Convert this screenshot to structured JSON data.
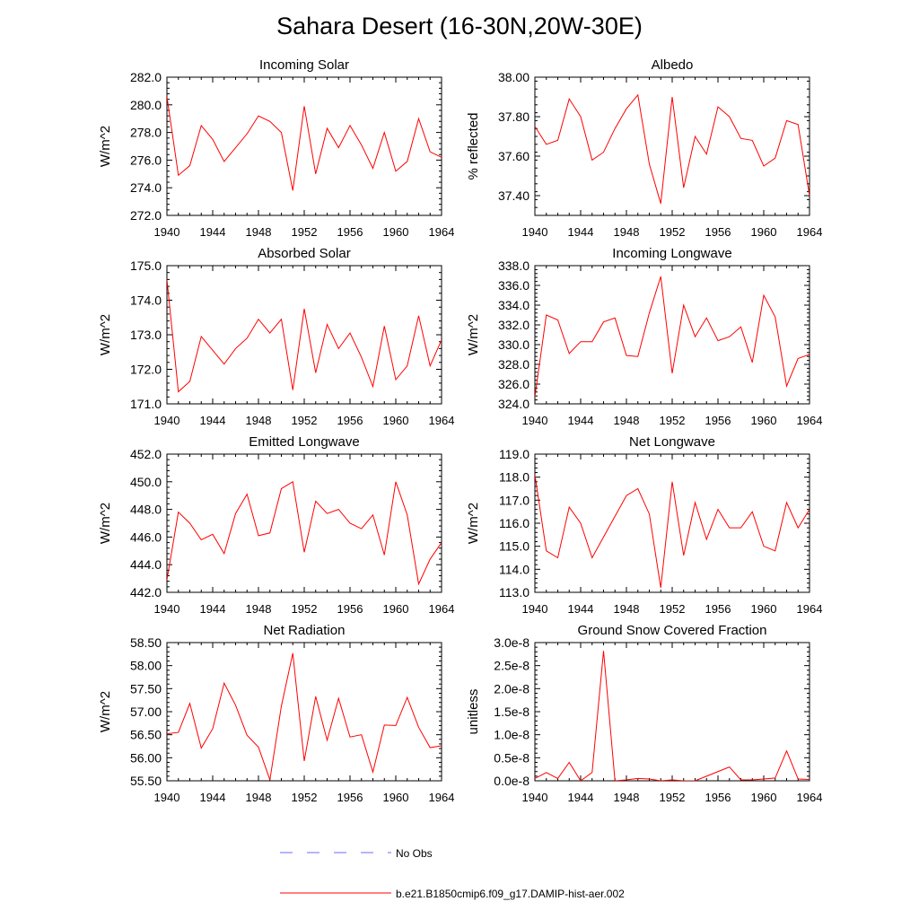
{
  "title": "Sahara Desert (16-30N,20W-30E)",
  "colors": {
    "model_line": "#ff0000",
    "obs_line": "#6b6bff",
    "axis": "#000000"
  },
  "legend": {
    "obs_label": "No Obs",
    "model_label": "b.e21.B1850cmip6.f09_g17.DAMIP-hist-aer.002"
  },
  "chart_data": [
    {
      "type": "line",
      "title": "Incoming Solar",
      "ylabel": "W/m^2",
      "xlim": [
        1940,
        1964
      ],
      "ylim": [
        272.0,
        282.0
      ],
      "yticks": [
        272.0,
        274.0,
        276.0,
        278.0,
        280.0,
        282.0
      ],
      "ytick_labels": [
        "272.0",
        "274.0",
        "276.0",
        "278.0",
        "280.0",
        "282.0"
      ],
      "xticks": [
        1940,
        1944,
        1948,
        1952,
        1956,
        1960,
        1964
      ],
      "x": [
        1940,
        1941,
        1942,
        1943,
        1944,
        1945,
        1946,
        1947,
        1948,
        1949,
        1950,
        1951,
        1952,
        1953,
        1954,
        1955,
        1956,
        1957,
        1958,
        1959,
        1960,
        1961,
        1962,
        1963,
        1964
      ],
      "series": [
        {
          "values": [
            280.6,
            274.9,
            275.6,
            278.5,
            277.5,
            275.9,
            276.9,
            277.9,
            279.2,
            278.8,
            278.0,
            273.8,
            279.9,
            275.0,
            278.3,
            276.9,
            278.5,
            277.1,
            275.4,
            278.0,
            275.2,
            275.9,
            279.0,
            276.6,
            276.2
          ]
        }
      ]
    },
    {
      "type": "line",
      "title": "Albedo",
      "ylabel": "% reflected",
      "xlim": [
        1940,
        1964
      ],
      "ylim": [
        37.3,
        38.0
      ],
      "yticks": [
        37.4,
        37.6,
        37.8,
        38.0
      ],
      "ytick_labels": [
        "37.40",
        "37.60",
        "37.80",
        "38.00"
      ],
      "xticks": [
        1940,
        1944,
        1948,
        1952,
        1956,
        1960,
        1964
      ],
      "x": [
        1940,
        1941,
        1942,
        1943,
        1944,
        1945,
        1946,
        1947,
        1948,
        1949,
        1950,
        1951,
        1952,
        1953,
        1954,
        1955,
        1956,
        1957,
        1958,
        1959,
        1960,
        1961,
        1962,
        1963,
        1964
      ],
      "series": [
        {
          "values": [
            37.75,
            37.66,
            37.68,
            37.89,
            37.8,
            37.58,
            37.62,
            37.74,
            37.84,
            37.91,
            37.56,
            37.36,
            37.9,
            37.44,
            37.7,
            37.61,
            37.85,
            37.8,
            37.69,
            37.68,
            37.55,
            37.59,
            37.78,
            37.76,
            37.4
          ]
        }
      ]
    },
    {
      "type": "line",
      "title": "Absorbed Solar",
      "ylabel": "W/m^2",
      "xlim": [
        1940,
        1964
      ],
      "ylim": [
        171.0,
        175.0
      ],
      "yticks": [
        171.0,
        172.0,
        173.0,
        174.0,
        175.0
      ],
      "ytick_labels": [
        "171.0",
        "172.0",
        "173.0",
        "174.0",
        "175.0"
      ],
      "xticks": [
        1940,
        1944,
        1948,
        1952,
        1956,
        1960,
        1964
      ],
      "x": [
        1940,
        1941,
        1942,
        1943,
        1944,
        1945,
        1946,
        1947,
        1948,
        1949,
        1950,
        1951,
        1952,
        1953,
        1954,
        1955,
        1956,
        1957,
        1958,
        1959,
        1960,
        1961,
        1962,
        1963,
        1964
      ],
      "series": [
        {
          "values": [
            174.6,
            171.35,
            171.65,
            172.95,
            172.55,
            172.15,
            172.6,
            172.9,
            173.45,
            173.05,
            173.45,
            171.4,
            173.75,
            171.9,
            173.3,
            172.6,
            173.05,
            172.35,
            171.5,
            173.25,
            171.7,
            172.1,
            173.55,
            172.1,
            172.85
          ]
        }
      ]
    },
    {
      "type": "line",
      "title": "Incoming Longwave",
      "ylabel": "W/m^2",
      "xlim": [
        1940,
        1964
      ],
      "ylim": [
        324.0,
        338.0
      ],
      "yticks": [
        324.0,
        326.0,
        328.0,
        330.0,
        332.0,
        334.0,
        336.0,
        338.0
      ],
      "ytick_labels": [
        "324.0",
        "326.0",
        "328.0",
        "330.0",
        "332.0",
        "334.0",
        "336.0",
        "338.0"
      ],
      "xticks": [
        1940,
        1944,
        1948,
        1952,
        1956,
        1960,
        1964
      ],
      "x": [
        1940,
        1941,
        1942,
        1943,
        1944,
        1945,
        1946,
        1947,
        1948,
        1949,
        1950,
        1951,
        1952,
        1953,
        1954,
        1955,
        1956,
        1957,
        1958,
        1959,
        1960,
        1961,
        1962,
        1963,
        1964
      ],
      "series": [
        {
          "values": [
            324.7,
            333.0,
            332.5,
            329.1,
            330.3,
            330.3,
            332.3,
            332.7,
            328.9,
            328.8,
            333.2,
            336.9,
            327.1,
            334.0,
            330.8,
            332.7,
            330.4,
            330.8,
            331.8,
            328.2,
            335.0,
            332.8,
            325.8,
            328.6,
            329.0
          ]
        }
      ]
    },
    {
      "type": "line",
      "title": "Emitted Longwave",
      "ylabel": "W/m^2",
      "xlim": [
        1940,
        1964
      ],
      "ylim": [
        442.0,
        452.0
      ],
      "yticks": [
        442.0,
        444.0,
        446.0,
        448.0,
        450.0,
        452.0
      ],
      "ytick_labels": [
        "442.0",
        "444.0",
        "446.0",
        "448.0",
        "450.0",
        "452.0"
      ],
      "xticks": [
        1940,
        1944,
        1948,
        1952,
        1956,
        1960,
        1964
      ],
      "x": [
        1940,
        1941,
        1942,
        1943,
        1944,
        1945,
        1946,
        1947,
        1948,
        1949,
        1950,
        1951,
        1952,
        1953,
        1954,
        1955,
        1956,
        1957,
        1958,
        1959,
        1960,
        1961,
        1962,
        1963,
        1964
      ],
      "series": [
        {
          "values": [
            442.9,
            447.8,
            447.0,
            445.8,
            446.2,
            444.8,
            447.7,
            449.1,
            446.1,
            446.3,
            449.5,
            450.0,
            444.9,
            448.6,
            447.7,
            448.0,
            447.0,
            446.6,
            447.6,
            444.7,
            450.0,
            447.6,
            442.6,
            444.4,
            445.6
          ]
        }
      ]
    },
    {
      "type": "line",
      "title": "Net Longwave",
      "ylabel": "W/m^2",
      "xlim": [
        1940,
        1964
      ],
      "ylim": [
        113.0,
        119.0
      ],
      "yticks": [
        113.0,
        114.0,
        115.0,
        116.0,
        117.0,
        118.0,
        119.0
      ],
      "ytick_labels": [
        "113.0",
        "114.0",
        "115.0",
        "116.0",
        "117.0",
        "118.0",
        "119.0"
      ],
      "xticks": [
        1940,
        1944,
        1948,
        1952,
        1956,
        1960,
        1964
      ],
      "x": [
        1940,
        1941,
        1942,
        1943,
        1944,
        1945,
        1946,
        1947,
        1948,
        1949,
        1950,
        1951,
        1952,
        1953,
        1954,
        1955,
        1956,
        1957,
        1958,
        1959,
        1960,
        1961,
        1962,
        1963,
        1964
      ],
      "series": [
        {
          "values": [
            118.1,
            114.8,
            114.5,
            116.7,
            116.0,
            114.5,
            115.4,
            116.3,
            117.2,
            117.5,
            116.4,
            113.2,
            117.8,
            114.6,
            116.9,
            115.3,
            116.6,
            115.8,
            115.8,
            116.5,
            115.0,
            114.8,
            116.9,
            115.8,
            116.6
          ]
        }
      ]
    },
    {
      "type": "line",
      "title": "Net Radiation",
      "ylabel": "W/m^2",
      "xlim": [
        1940,
        1964
      ],
      "ylim": [
        55.5,
        58.5
      ],
      "yticks": [
        55.5,
        56.0,
        56.5,
        57.0,
        57.5,
        58.0,
        58.5
      ],
      "ytick_labels": [
        "55.50",
        "56.00",
        "56.50",
        "57.00",
        "57.50",
        "58.00",
        "58.50"
      ],
      "xticks": [
        1940,
        1944,
        1948,
        1952,
        1956,
        1960,
        1964
      ],
      "x": [
        1940,
        1941,
        1942,
        1943,
        1944,
        1945,
        1946,
        1947,
        1948,
        1949,
        1950,
        1951,
        1952,
        1953,
        1954,
        1955,
        1956,
        1957,
        1958,
        1959,
        1960,
        1961,
        1962,
        1963,
        1964
      ],
      "series": [
        {
          "values": [
            56.52,
            56.55,
            57.18,
            56.21,
            56.63,
            57.62,
            57.14,
            56.49,
            56.23,
            55.52,
            57.12,
            58.27,
            55.93,
            57.33,
            56.38,
            57.29,
            56.45,
            56.5,
            55.69,
            56.71,
            56.7,
            57.31,
            56.66,
            56.22,
            56.26
          ]
        }
      ]
    },
    {
      "type": "line",
      "title": "Ground Snow Covered Fraction",
      "ylabel": "unitless",
      "xlim": [
        1940,
        1964
      ],
      "ylim": [
        0,
        3e-08
      ],
      "yticks": [
        0,
        5e-09,
        1e-08,
        1.5e-08,
        2e-08,
        2.5e-08,
        3e-08
      ],
      "ytick_labels": [
        "0.0e-8",
        "0.5e-8",
        "1.0e-8",
        "1.5e-8",
        "2.0e-8",
        "2.5e-8",
        "3.0e-8"
      ],
      "xticks": [
        1940,
        1944,
        1948,
        1952,
        1956,
        1960,
        1964
      ],
      "x": [
        1940,
        1941,
        1942,
        1943,
        1944,
        1945,
        1946,
        1947,
        1948,
        1949,
        1950,
        1951,
        1952,
        1953,
        1954,
        1955,
        1956,
        1957,
        1958,
        1959,
        1960,
        1961,
        1962,
        1963,
        1964
      ],
      "series": [
        {
          "values": [
            5e-10,
            1.8e-09,
            5e-10,
            4e-09,
            0.0,
            1.8e-09,
            2.82e-08,
            0.0,
            2e-10,
            5e-10,
            4e-10,
            0.0,
            2e-10,
            0.0,
            0.0,
            1e-09,
            2e-09,
            3e-09,
            2e-10,
            2e-10,
            4e-10,
            6e-10,
            6.5e-09,
            4e-10,
            3e-10
          ]
        }
      ]
    }
  ]
}
